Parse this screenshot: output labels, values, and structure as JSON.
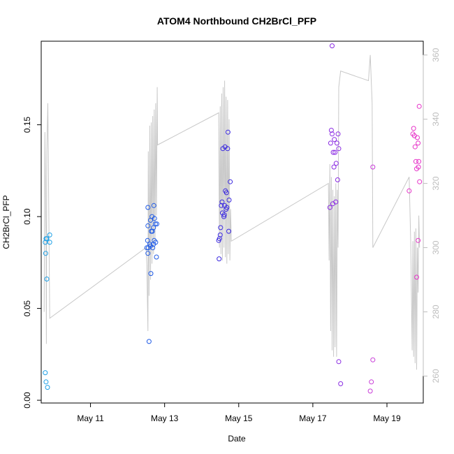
{
  "chart_data": {
    "type": "scatter",
    "title": "ATOM4 Northbound CH2BrCl_PFP",
    "xlabel": "Date",
    "ylabel": "CH2BrCl_PFP",
    "xlim": [
      9.67,
      19.98
    ],
    "ylim": [
      -0.0015,
      0.1955
    ],
    "y2lim": [
      251.6,
      364.3
    ],
    "x_ticks": [
      11,
      13,
      15,
      17,
      19
    ],
    "x_tick_labels": [
      "May 11",
      "May 13",
      "May 15",
      "May 17",
      "May 19"
    ],
    "y_ticks": [
      0.0,
      0.05,
      0.1,
      0.15
    ],
    "y_tick_labels": [
      "0.00",
      "0.05",
      "0.10",
      "0.15"
    ],
    "y2_ticks": [
      260,
      280,
      300,
      320,
      340,
      360
    ],
    "y2_tick_labels": [
      "260",
      "280",
      "300",
      "320",
      "340",
      "360"
    ],
    "grid": false,
    "line_color": "#c8c8c8",
    "series": [
      {
        "color": "#1ea0e6",
        "points": [
          [
            9.78,
            0.086
          ],
          [
            9.8,
            0.088
          ],
          [
            9.82,
            0.088
          ],
          [
            9.79,
            0.08
          ],
          [
            9.82,
            0.066
          ],
          [
            9.9,
            0.086
          ],
          [
            9.9,
            0.09
          ],
          [
            9.78,
            0.015
          ],
          [
            9.8,
            0.01
          ],
          [
            9.84,
            0.007
          ]
        ]
      },
      {
        "color": "#1e5ae6",
        "points": [
          [
            12.55,
            0.105
          ],
          [
            12.55,
            0.095
          ],
          [
            12.54,
            0.087
          ],
          [
            12.52,
            0.083
          ],
          [
            12.56,
            0.083
          ],
          [
            12.55,
            0.08
          ],
          [
            12.6,
            0.085
          ],
          [
            12.62,
            0.098
          ],
          [
            12.66,
            0.1
          ],
          [
            12.64,
            0.092
          ],
          [
            12.67,
            0.092
          ],
          [
            12.7,
            0.094
          ],
          [
            12.71,
            0.106
          ],
          [
            12.73,
            0.099
          ],
          [
            12.75,
            0.096
          ],
          [
            12.79,
            0.096
          ],
          [
            12.72,
            0.087
          ],
          [
            12.76,
            0.086
          ],
          [
            12.7,
            0.085
          ],
          [
            12.68,
            0.083
          ],
          [
            12.62,
            0.084
          ],
          [
            12.63,
            0.069
          ],
          [
            12.78,
            0.078
          ],
          [
            12.58,
            0.032
          ]
        ]
      },
      {
        "color": "#3a28e0",
        "points": [
          [
            14.46,
            0.087
          ],
          [
            14.48,
            0.088
          ],
          [
            14.5,
            0.09
          ],
          [
            14.51,
            0.094
          ],
          [
            14.53,
            0.106
          ],
          [
            14.55,
            0.108
          ],
          [
            14.56,
            0.102
          ],
          [
            14.57,
            0.137
          ],
          [
            14.6,
            0.1
          ],
          [
            14.61,
            0.101
          ],
          [
            14.62,
            0.106
          ],
          [
            14.63,
            0.138
          ],
          [
            14.64,
            0.114
          ],
          [
            14.66,
            0.104
          ],
          [
            14.67,
            0.113
          ],
          [
            14.68,
            0.105
          ],
          [
            14.7,
            0.137
          ],
          [
            14.71,
            0.146
          ],
          [
            14.73,
            0.092
          ],
          [
            14.74,
            0.109
          ],
          [
            14.77,
            0.119
          ],
          [
            14.47,
            0.077
          ]
        ]
      },
      {
        "color": "#8a2be2",
        "points": [
          [
            17.46,
            0.105
          ],
          [
            17.48,
            0.14
          ],
          [
            17.5,
            0.147
          ],
          [
            17.52,
            0.145
          ],
          [
            17.54,
            0.107
          ],
          [
            17.55,
            0.135
          ],
          [
            17.57,
            0.127
          ],
          [
            17.58,
            0.142
          ],
          [
            17.6,
            0.135
          ],
          [
            17.62,
            0.108
          ],
          [
            17.63,
            0.129
          ],
          [
            17.65,
            0.14
          ],
          [
            17.68,
            0.145
          ],
          [
            17.7,
            0.137
          ],
          [
            17.67,
            0.12
          ],
          [
            17.52,
            0.193
          ],
          [
            17.7,
            0.021
          ],
          [
            17.75,
            0.009
          ]
        ]
      },
      {
        "color": "#c83cd8",
        "points": [
          [
            18.55,
            0.005
          ],
          [
            18.58,
            0.01
          ],
          [
            18.62,
            0.022
          ],
          [
            18.62,
            0.127
          ]
        ]
      },
      {
        "color": "#e632c8",
        "points": [
          [
            19.6,
            0.114
          ],
          [
            19.7,
            0.145
          ],
          [
            19.72,
            0.148
          ],
          [
            19.74,
            0.144
          ],
          [
            19.76,
            0.138
          ],
          [
            19.78,
            0.13
          ],
          [
            19.8,
            0.126
          ],
          [
            19.82,
            0.143
          ],
          [
            19.84,
            0.14
          ],
          [
            19.85,
            0.127
          ],
          [
            19.86,
            0.13
          ],
          [
            19.87,
            0.16
          ],
          [
            19.88,
            0.119
          ],
          [
            19.8,
            0.067
          ],
          [
            19.84,
            0.087
          ]
        ]
      }
    ],
    "line_series": {
      "axis": "right",
      "points": [
        [
          9.75,
          280
        ],
        [
          9.77,
          336
        ],
        [
          9.8,
          302
        ],
        [
          9.81,
          270
        ],
        [
          9.82,
          330
        ],
        [
          9.85,
          345
        ],
        [
          9.9,
          278
        ],
        [
          12.5,
          300
        ],
        [
          12.52,
          295
        ],
        [
          12.55,
          274
        ],
        [
          12.56,
          330
        ],
        [
          12.58,
          285
        ],
        [
          12.6,
          338
        ],
        [
          12.62,
          290
        ],
        [
          12.64,
          339
        ],
        [
          12.66,
          295
        ],
        [
          12.68,
          341
        ],
        [
          12.7,
          298
        ],
        [
          12.72,
          343
        ],
        [
          12.74,
          302
        ],
        [
          12.76,
          345
        ],
        [
          12.78,
          310
        ],
        [
          12.8,
          350
        ],
        [
          12.81,
          332
        ],
        [
          14.46,
          342
        ],
        [
          14.48,
          300
        ],
        [
          14.5,
          344
        ],
        [
          14.52,
          298
        ],
        [
          14.54,
          348
        ],
        [
          14.56,
          296
        ],
        [
          14.58,
          350
        ],
        [
          14.6,
          300
        ],
        [
          14.62,
          352
        ],
        [
          14.64,
          297
        ],
        [
          14.66,
          347
        ],
        [
          14.68,
          295
        ],
        [
          14.7,
          346
        ],
        [
          14.72,
          298
        ],
        [
          14.74,
          340
        ],
        [
          14.76,
          296
        ],
        [
          14.78,
          312
        ],
        [
          14.8,
          302
        ],
        [
          17.42,
          320
        ],
        [
          17.44,
          296
        ],
        [
          17.46,
          326
        ],
        [
          17.48,
          274
        ],
        [
          17.5,
          322
        ],
        [
          17.52,
          268
        ],
        [
          17.54,
          318
        ],
        [
          17.56,
          266
        ],
        [
          17.58,
          316
        ],
        [
          17.6,
          269
        ],
        [
          17.62,
          320
        ],
        [
          17.64,
          266
        ],
        [
          17.66,
          318
        ],
        [
          17.68,
          300
        ],
        [
          17.7,
          350
        ],
        [
          17.75,
          355
        ],
        [
          18.5,
          352
        ],
        [
          18.55,
          360
        ],
        [
          18.6,
          345
        ],
        [
          18.62,
          300
        ],
        [
          19.6,
          322
        ],
        [
          19.64,
          302
        ],
        [
          19.68,
          268
        ],
        [
          19.7,
          302
        ],
        [
          19.72,
          266
        ],
        [
          19.74,
          305
        ],
        [
          19.76,
          264
        ],
        [
          19.78,
          306
        ],
        [
          19.8,
          262
        ],
        [
          19.82,
          300
        ],
        [
          19.84,
          286
        ],
        [
          19.86,
          310
        ],
        [
          19.88,
          300
        ]
      ]
    }
  }
}
